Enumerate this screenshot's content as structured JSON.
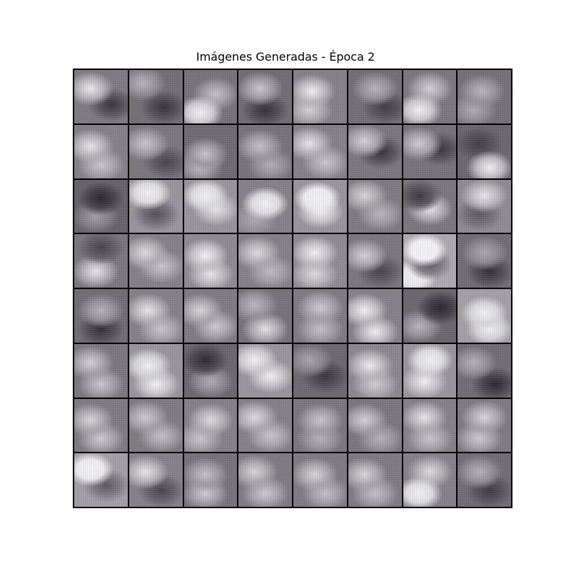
{
  "title": "Imágenes Generadas - Época 2",
  "grid": {
    "rows": 8,
    "cols": 8,
    "base_color": "#4e4a55",
    "highlight_color": "#f2f1f4",
    "shadow_color": "#2a2630",
    "tiles": [
      {
        "base": 0.42,
        "blobs": [
          [
            0.3,
            0.35,
            0.55
          ],
          [
            0.7,
            0.65,
            -0.35
          ]
        ]
      },
      {
        "base": 0.36,
        "blobs": [
          [
            0.25,
            0.25,
            0.35
          ],
          [
            0.65,
            0.7,
            -0.3
          ]
        ]
      },
      {
        "base": 0.38,
        "blobs": [
          [
            0.3,
            0.8,
            0.9
          ],
          [
            0.6,
            0.45,
            0.4
          ]
        ]
      },
      {
        "base": 0.35,
        "blobs": [
          [
            0.4,
            0.35,
            0.45
          ],
          [
            0.5,
            0.75,
            -0.3
          ]
        ]
      },
      {
        "base": 0.45,
        "blobs": [
          [
            0.35,
            0.4,
            0.55
          ],
          [
            0.3,
            0.75,
            0.4
          ]
        ]
      },
      {
        "base": 0.36,
        "blobs": [
          [
            0.5,
            0.35,
            0.35
          ],
          [
            0.7,
            0.7,
            -0.25
          ]
        ]
      },
      {
        "base": 0.4,
        "blobs": [
          [
            0.3,
            0.75,
            0.8
          ],
          [
            0.5,
            0.35,
            0.45
          ]
        ]
      },
      {
        "base": 0.37,
        "blobs": [
          [
            0.45,
            0.4,
            0.35
          ],
          [
            0.3,
            0.75,
            0.3
          ]
        ]
      },
      {
        "base": 0.45,
        "blobs": [
          [
            0.3,
            0.4,
            0.5
          ],
          [
            0.5,
            0.75,
            0.35
          ]
        ]
      },
      {
        "base": 0.4,
        "blobs": [
          [
            0.3,
            0.35,
            0.4
          ],
          [
            0.7,
            0.7,
            -0.25
          ]
        ]
      },
      {
        "base": 0.34,
        "blobs": [
          [
            0.4,
            0.55,
            0.45
          ],
          [
            0.3,
            0.8,
            0.4
          ]
        ]
      },
      {
        "base": 0.38,
        "blobs": [
          [
            0.4,
            0.4,
            0.4
          ],
          [
            0.6,
            0.75,
            0.3
          ]
        ]
      },
      {
        "base": 0.45,
        "blobs": [
          [
            0.3,
            0.35,
            0.5
          ],
          [
            0.6,
            0.7,
            0.35
          ]
        ]
      },
      {
        "base": 0.4,
        "blobs": [
          [
            0.3,
            0.3,
            0.45
          ],
          [
            0.6,
            0.5,
            -0.35
          ]
        ]
      },
      {
        "base": 0.38,
        "blobs": [
          [
            0.3,
            0.35,
            0.45
          ],
          [
            0.7,
            0.45,
            -0.3
          ]
        ]
      },
      {
        "base": 0.32,
        "blobs": [
          [
            0.6,
            0.8,
            0.85
          ],
          [
            0.4,
            0.35,
            -0.2
          ]
        ]
      },
      {
        "base": 0.3,
        "blobs": [
          [
            0.5,
            0.35,
            -0.3
          ],
          [
            0.4,
            0.7,
            0.3
          ]
        ]
      },
      {
        "base": 0.55,
        "blobs": [
          [
            0.35,
            0.25,
            0.7
          ],
          [
            0.5,
            0.65,
            -0.35
          ]
        ]
      },
      {
        "base": 0.55,
        "blobs": [
          [
            0.4,
            0.3,
            0.7
          ],
          [
            0.6,
            0.55,
            0.4
          ]
        ]
      },
      {
        "base": 0.45,
        "blobs": [
          [
            0.5,
            0.45,
            0.9
          ],
          [
            0.3,
            0.75,
            0.2
          ]
        ]
      },
      {
        "base": 0.55,
        "blobs": [
          [
            0.45,
            0.35,
            0.85
          ],
          [
            0.5,
            0.6,
            0.5
          ]
        ]
      },
      {
        "base": 0.42,
        "blobs": [
          [
            0.3,
            0.3,
            0.45
          ],
          [
            0.6,
            0.65,
            0.3
          ]
        ]
      },
      {
        "base": 0.4,
        "blobs": [
          [
            0.3,
            0.3,
            -0.3
          ],
          [
            0.5,
            0.55,
            0.55
          ]
        ]
      },
      {
        "base": 0.5,
        "blobs": [
          [
            0.5,
            0.3,
            0.45
          ],
          [
            0.4,
            0.65,
            -0.25
          ]
        ]
      },
      {
        "base": 0.4,
        "blobs": [
          [
            0.5,
            0.25,
            -0.25
          ],
          [
            0.4,
            0.7,
            0.55
          ]
        ]
      },
      {
        "base": 0.45,
        "blobs": [
          [
            0.3,
            0.35,
            0.45
          ],
          [
            0.6,
            0.6,
            0.35
          ]
        ]
      },
      {
        "base": 0.5,
        "blobs": [
          [
            0.4,
            0.4,
            0.55
          ],
          [
            0.5,
            0.75,
            0.45
          ]
        ]
      },
      {
        "base": 0.45,
        "blobs": [
          [
            0.35,
            0.35,
            0.45
          ],
          [
            0.6,
            0.7,
            0.3
          ]
        ]
      },
      {
        "base": 0.5,
        "blobs": [
          [
            0.4,
            0.35,
            0.55
          ],
          [
            0.4,
            0.75,
            0.4
          ]
        ]
      },
      {
        "base": 0.4,
        "blobs": [
          [
            0.3,
            0.4,
            0.45
          ],
          [
            0.6,
            0.7,
            -0.25
          ]
        ]
      },
      {
        "base": 0.65,
        "blobs": [
          [
            0.4,
            0.3,
            0.9
          ],
          [
            0.5,
            0.55,
            -0.4
          ],
          [
            0.2,
            0.8,
            0.6
          ]
        ]
      },
      {
        "base": 0.35,
        "blobs": [
          [
            0.5,
            0.35,
            0.3
          ],
          [
            0.6,
            0.7,
            -0.3
          ]
        ]
      },
      {
        "base": 0.35,
        "blobs": [
          [
            0.5,
            0.4,
            0.35
          ],
          [
            0.5,
            0.75,
            -0.3
          ]
        ]
      },
      {
        "base": 0.45,
        "blobs": [
          [
            0.35,
            0.4,
            0.5
          ],
          [
            0.6,
            0.75,
            0.35
          ]
        ]
      },
      {
        "base": 0.42,
        "blobs": [
          [
            0.3,
            0.4,
            0.45
          ],
          [
            0.6,
            0.7,
            0.4
          ]
        ]
      },
      {
        "base": 0.38,
        "blobs": [
          [
            0.3,
            0.3,
            0.35
          ],
          [
            0.5,
            0.75,
            0.55
          ]
        ]
      },
      {
        "base": 0.42,
        "blobs": [
          [
            0.5,
            0.35,
            0.4
          ],
          [
            0.5,
            0.75,
            0.35
          ]
        ]
      },
      {
        "base": 0.45,
        "blobs": [
          [
            0.3,
            0.4,
            0.6
          ],
          [
            0.5,
            0.8,
            0.55
          ]
        ]
      },
      {
        "base": 0.32,
        "blobs": [
          [
            0.7,
            0.35,
            -0.35
          ],
          [
            0.3,
            0.7,
            0.4
          ]
        ]
      },
      {
        "base": 0.6,
        "blobs": [
          [
            0.5,
            0.45,
            0.55
          ],
          [
            0.6,
            0.75,
            0.5
          ]
        ]
      },
      {
        "base": 0.4,
        "blobs": [
          [
            0.3,
            0.35,
            0.45
          ],
          [
            0.5,
            0.75,
            0.4
          ]
        ]
      },
      {
        "base": 0.55,
        "blobs": [
          [
            0.35,
            0.4,
            0.6
          ],
          [
            0.5,
            0.75,
            0.5
          ]
        ]
      },
      {
        "base": 0.32,
        "blobs": [
          [
            0.4,
            0.3,
            -0.3
          ],
          [
            0.5,
            0.7,
            0.35
          ]
        ]
      },
      {
        "base": 0.55,
        "blobs": [
          [
            0.3,
            0.3,
            0.55
          ],
          [
            0.6,
            0.6,
            0.45
          ]
        ]
      },
      {
        "base": 0.33,
        "blobs": [
          [
            0.3,
            0.3,
            0.3
          ],
          [
            0.6,
            0.6,
            -0.25
          ]
        ]
      },
      {
        "base": 0.48,
        "blobs": [
          [
            0.4,
            0.4,
            0.5
          ],
          [
            0.5,
            0.75,
            0.35
          ]
        ]
      },
      {
        "base": 0.55,
        "blobs": [
          [
            0.5,
            0.3,
            0.7
          ],
          [
            0.4,
            0.7,
            0.45
          ]
        ]
      },
      {
        "base": 0.35,
        "blobs": [
          [
            0.3,
            0.35,
            0.35
          ],
          [
            0.7,
            0.75,
            -0.35
          ]
        ]
      },
      {
        "base": 0.42,
        "blobs": [
          [
            0.3,
            0.4,
            0.45
          ],
          [
            0.5,
            0.75,
            0.4
          ]
        ]
      },
      {
        "base": 0.42,
        "blobs": [
          [
            0.3,
            0.35,
            0.4
          ],
          [
            0.6,
            0.7,
            0.35
          ]
        ]
      },
      {
        "base": 0.45,
        "blobs": [
          [
            0.5,
            0.4,
            0.45
          ],
          [
            0.3,
            0.75,
            0.35
          ]
        ]
      },
      {
        "base": 0.45,
        "blobs": [
          [
            0.3,
            0.35,
            0.45
          ],
          [
            0.6,
            0.7,
            0.35
          ]
        ]
      },
      {
        "base": 0.4,
        "blobs": [
          [
            0.5,
            0.4,
            0.4
          ],
          [
            0.5,
            0.75,
            0.3
          ]
        ]
      },
      {
        "base": 0.4,
        "blobs": [
          [
            0.3,
            0.4,
            0.45
          ],
          [
            0.6,
            0.75,
            0.3
          ]
        ]
      },
      {
        "base": 0.45,
        "blobs": [
          [
            0.4,
            0.35,
            0.5
          ],
          [
            0.5,
            0.75,
            0.35
          ]
        ]
      },
      {
        "base": 0.42,
        "blobs": [
          [
            0.5,
            0.35,
            0.45
          ],
          [
            0.4,
            0.75,
            0.4
          ]
        ]
      },
      {
        "base": 0.6,
        "blobs": [
          [
            0.3,
            0.3,
            0.75
          ],
          [
            0.6,
            0.6,
            -0.35
          ]
        ]
      },
      {
        "base": 0.45,
        "blobs": [
          [
            0.3,
            0.35,
            0.5
          ],
          [
            0.6,
            0.7,
            -0.3
          ]
        ]
      },
      {
        "base": 0.38,
        "blobs": [
          [
            0.4,
            0.4,
            0.4
          ],
          [
            0.4,
            0.75,
            0.45
          ]
        ]
      },
      {
        "base": 0.42,
        "blobs": [
          [
            0.3,
            0.35,
            0.45
          ],
          [
            0.5,
            0.75,
            0.4
          ]
        ]
      },
      {
        "base": 0.42,
        "blobs": [
          [
            0.4,
            0.4,
            0.45
          ],
          [
            0.6,
            0.75,
            0.35
          ]
        ]
      },
      {
        "base": 0.42,
        "blobs": [
          [
            0.3,
            0.4,
            0.45
          ],
          [
            0.5,
            0.75,
            0.35
          ]
        ]
      },
      {
        "base": 0.45,
        "blobs": [
          [
            0.3,
            0.75,
            0.9
          ],
          [
            0.5,
            0.35,
            0.45
          ]
        ]
      },
      {
        "base": 0.35,
        "blobs": [
          [
            0.4,
            0.35,
            0.35
          ],
          [
            0.6,
            0.7,
            -0.25
          ]
        ]
      }
    ]
  }
}
